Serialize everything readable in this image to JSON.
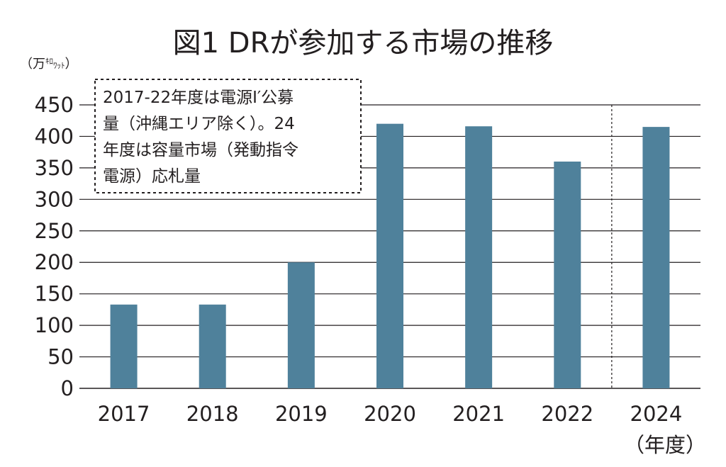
{
  "chart_data": {
    "type": "bar",
    "title": "図1  DRが参加する市場の推移",
    "unit_label": {
      "open": "（万",
      "kilo": "ｷﾛ",
      "watt": "ﾜｯﾄ",
      "close": "）"
    },
    "categories": [
      "2017",
      "2018",
      "2019",
      "2020",
      "2021",
      "2022",
      "2024"
    ],
    "values": [
      133,
      133,
      200,
      420,
      416,
      360,
      415
    ],
    "xlabel": "（年度）",
    "ylabel": "",
    "ylim": [
      0,
      450
    ],
    "yticks": [
      "0",
      "50",
      "100",
      "150",
      "200",
      "250",
      "300",
      "350",
      "400",
      "450"
    ],
    "grid": true,
    "bar_color": "#4f819b",
    "divider_between": [
      "2022",
      "2024"
    ],
    "annotation": [
      "2017-22年度は電源Ⅰ′公募",
      "量（沖縄エリア除く）。24",
      "年度は容量市場（発動指令",
      "電源）応札量"
    ]
  }
}
